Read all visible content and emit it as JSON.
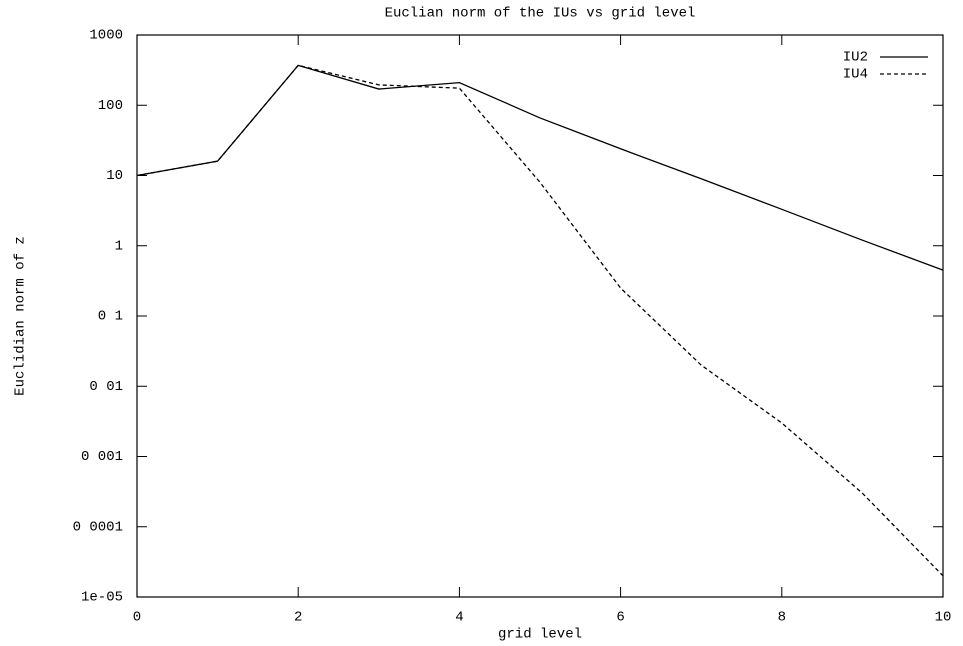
{
  "chart_data": {
    "type": "line",
    "title": "Euclian norm of the IUs vs grid level",
    "xlabel": "grid level",
    "ylabel": "Euclidian norm of z",
    "x": [
      0,
      1,
      2,
      3,
      4,
      5,
      6,
      7,
      8,
      9,
      10
    ],
    "series": [
      {
        "name": "IU2",
        "color": "#000000",
        "dash": false,
        "values": [
          10,
          16,
          370,
          170,
          210,
          66,
          24,
          9,
          3.3,
          1.2,
          0.45
        ]
      },
      {
        "name": "IU4",
        "color": "#000000",
        "dash": true,
        "values": [
          10,
          16,
          370,
          195,
          175,
          8,
          0.25,
          0.02,
          0.003,
          0.0003,
          2e-05
        ]
      }
    ],
    "xlim": [
      0,
      10
    ],
    "xticks": [
      0,
      2,
      4,
      6,
      8,
      10
    ],
    "ylim": [
      1e-05,
      1000
    ],
    "ylog": true,
    "yticks": [
      1000,
      100,
      10,
      1,
      {
        "value": 0.1,
        "label": "0 1"
      },
      {
        "value": 0.01,
        "label": "0 01"
      },
      {
        "value": 0.001,
        "label": "0 001"
      },
      {
        "value": 0.0001,
        "label": "0 0001"
      },
      {
        "value": 1e-05,
        "label": "1e-05"
      }
    ],
    "legend": "upper right"
  }
}
